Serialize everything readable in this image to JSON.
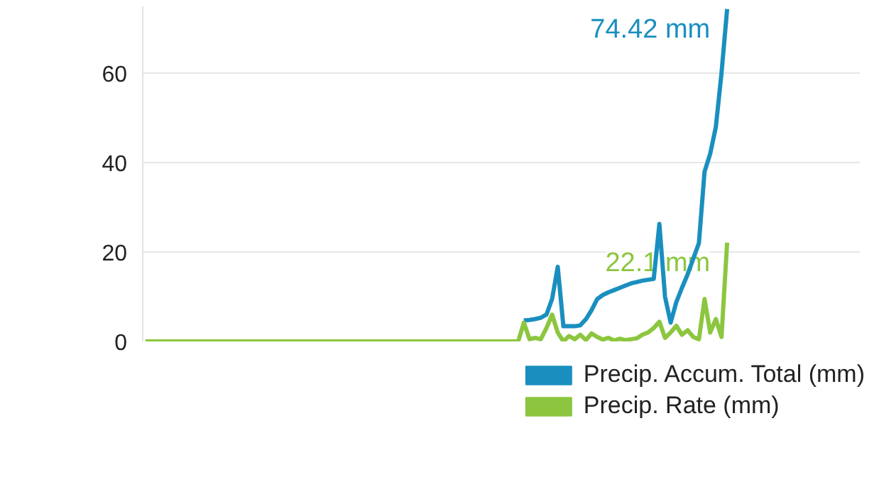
{
  "chart_data": {
    "type": "line",
    "categories": [
      null,
      null,
      null,
      null,
      null,
      null,
      null,
      null,
      null,
      null,
      null,
      null,
      null,
      null,
      null,
      null,
      null,
      null,
      null,
      null,
      null,
      null,
      null,
      null,
      null,
      null,
      null,
      null,
      null,
      null,
      null,
      null,
      null,
      null,
      null,
      null,
      null,
      null,
      null,
      null,
      null,
      null,
      null,
      null,
      null,
      null,
      null,
      null,
      null,
      null,
      null,
      null,
      null,
      null,
      null,
      null,
      null,
      null,
      null,
      null,
      null,
      null,
      null,
      null,
      null,
      null,
      null,
      null,
      null,
      null,
      null,
      null,
      null,
      null,
      null,
      null,
      null,
      null,
      null,
      null,
      null,
      null,
      null,
      null,
      null,
      null,
      null,
      null,
      null,
      null,
      null,
      null,
      null,
      null,
      null,
      null,
      null,
      null,
      null,
      null,
      null,
      null,
      null,
      null,
      null,
      null,
      null,
      null,
      null,
      null,
      null,
      null,
      null,
      null,
      null,
      null,
      null,
      null,
      null,
      null,
      null,
      null,
      null,
      null,
      null,
      null,
      null
    ],
    "series": [
      {
        "name": "Precip. Accum. Total (mm)",
        "color": "#1a8fbf",
        "values": [
          null,
          null,
          null,
          null,
          null,
          null,
          null,
          null,
          null,
          null,
          null,
          null,
          null,
          null,
          null,
          null,
          null,
          null,
          null,
          null,
          null,
          null,
          null,
          null,
          null,
          null,
          null,
          null,
          null,
          null,
          null,
          null,
          null,
          null,
          null,
          null,
          null,
          null,
          null,
          null,
          null,
          null,
          null,
          null,
          null,
          null,
          null,
          null,
          null,
          null,
          null,
          null,
          null,
          null,
          null,
          null,
          null,
          null,
          null,
          null,
          null,
          null,
          null,
          null,
          null,
          null,
          null,
          4.7,
          4.8,
          5,
          5.3,
          6,
          9.5,
          16.7,
          3.4,
          3.4,
          3.4,
          3.6,
          5,
          7,
          9.5,
          10.4,
          11,
          11.5,
          12,
          12.5,
          13,
          13.3,
          13.6,
          13.8,
          14,
          26.3,
          10,
          4.2,
          8.8,
          12,
          15,
          18.5,
          22,
          38,
          42,
          48,
          60,
          74.42,
          null,
          null,
          null,
          null,
          null,
          null,
          null,
          null,
          null,
          null,
          null,
          null,
          null,
          null,
          null,
          null,
          null,
          null,
          null,
          null,
          null,
          null,
          null
        ]
      },
      {
        "name": "Precip. Rate (mm)",
        "color": "#8cc63f",
        "values": [
          0,
          0,
          0,
          0,
          0,
          0,
          0,
          0,
          0,
          0,
          0,
          0,
          0,
          0,
          0,
          0,
          0,
          0,
          0,
          0,
          0,
          0,
          0,
          0,
          0,
          0,
          0,
          0,
          0,
          0,
          0,
          0,
          0,
          0,
          0,
          0,
          0,
          0,
          0,
          0,
          0,
          0,
          0,
          0,
          0,
          0,
          0,
          0,
          0,
          0,
          0,
          0,
          0,
          0,
          0,
          0,
          0,
          0,
          0,
          0,
          0,
          0,
          0,
          0,
          0,
          0,
          0,
          4.2,
          0.5,
          0.8,
          0.5,
          3,
          6,
          2,
          0,
          1.2,
          0.5,
          1.5,
          0.3,
          1.8,
          1,
          0.4,
          0.8,
          0.2,
          0.6,
          0.3,
          0.5,
          0.7,
          1.5,
          2,
          3,
          4.4,
          0.8,
          2,
          3.5,
          1.5,
          2.5,
          1,
          0.5,
          9.5,
          2,
          5,
          1,
          22.1,
          null,
          null,
          null,
          null,
          null,
          null,
          null,
          null,
          null,
          null,
          null,
          null,
          null,
          null,
          null,
          null,
          null,
          null,
          null,
          null,
          null,
          null,
          null
        ]
      }
    ],
    "annotations": [
      "74.42 mm",
      "22.1 mm"
    ],
    "ylim": [
      0,
      75
    ],
    "yticks": [
      0,
      20,
      40,
      60
    ],
    "grid": "y",
    "legend": "bottom right"
  }
}
